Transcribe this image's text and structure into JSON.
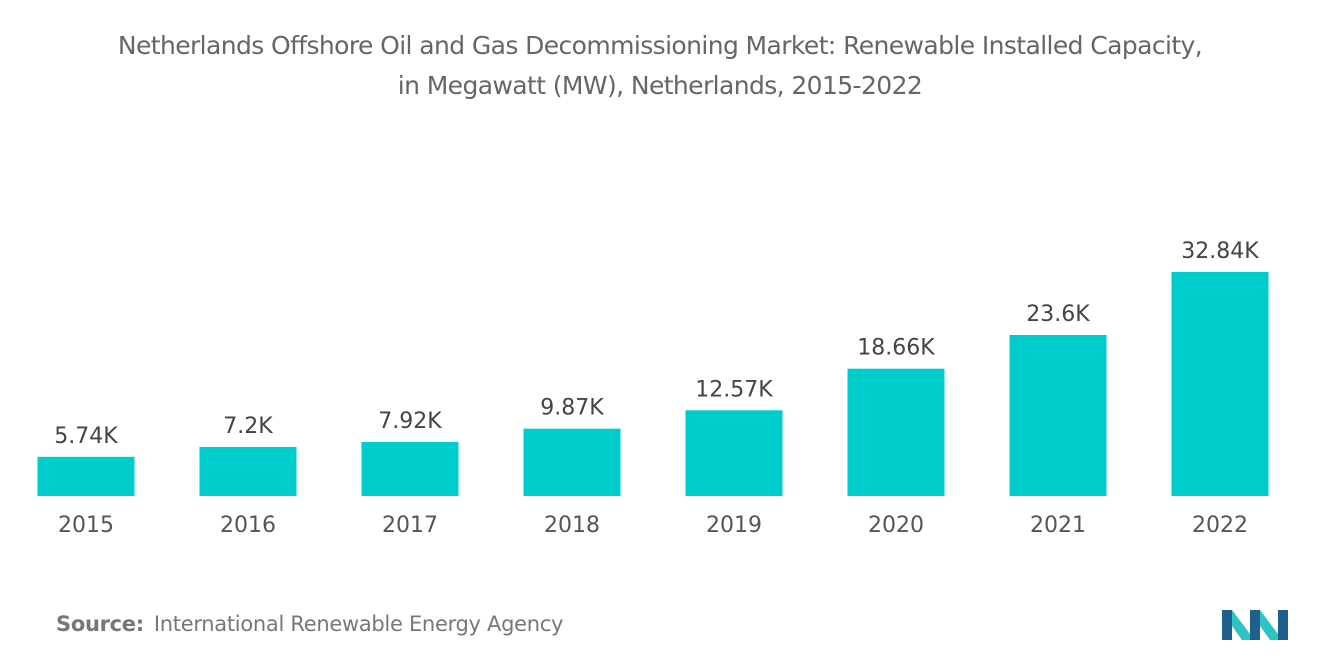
{
  "header": {
    "title_line1": "Netherlands Offshore Oil and Gas Decommissioning Market: Renewable Installed Capacity,",
    "title_line2": "in Megawatt (MW), Netherlands, 2015-2022"
  },
  "footer": {
    "source_label": "Source:",
    "source_text": "International Renewable Energy Agency"
  },
  "logo": {
    "icon": "mordor-intelligence-logo-icon",
    "colors": [
      "#1f5f8b",
      "#2ec4c6"
    ]
  },
  "chart_data": {
    "type": "bar",
    "title": "Netherlands Offshore Oil and Gas Decommissioning Market: Renewable Installed Capacity, in Megawatt (MW), Netherlands, 2015-2022",
    "categories": [
      "2015",
      "2016",
      "2017",
      "2018",
      "2019",
      "2020",
      "2021",
      "2022"
    ],
    "values": [
      5740,
      7200,
      7920,
      9870,
      12570,
      18660,
      23600,
      32840
    ],
    "data_labels": [
      "5.74K",
      "7.2K",
      "7.92K",
      "9.87K",
      "12.57K",
      "18.66K",
      "23.6K",
      "32.84K"
    ],
    "ylim": [
      0,
      32840
    ],
    "grid": false,
    "legend": "none",
    "bar_color": "#00cccc"
  }
}
